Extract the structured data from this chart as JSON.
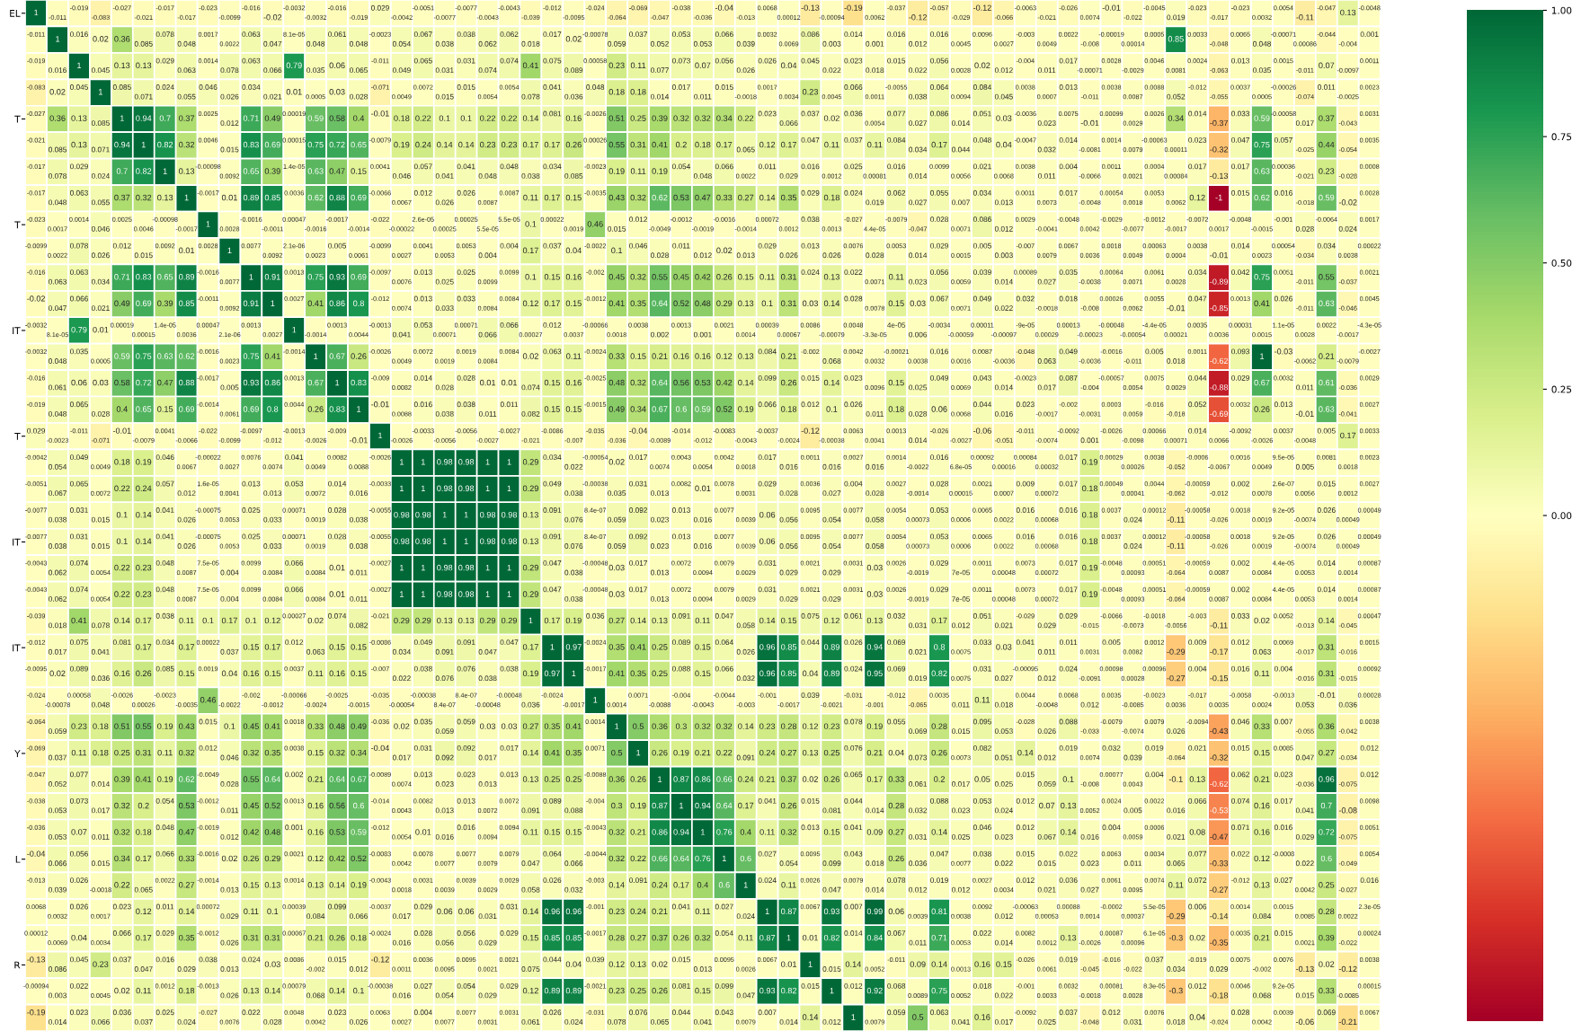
{
  "chart_data": {
    "type": "heatmap",
    "categories": [
      null,
      null,
      null,
      null,
      null,
      null,
      null,
      null,
      null,
      null,
      null,
      null,
      null,
      null,
      null,
      null,
      null,
      null,
      null,
      null,
      null,
      null,
      null,
      null,
      null,
      null,
      null,
      null,
      null,
      null,
      null,
      null,
      null,
      null,
      null,
      null,
      null,
      null,
      null,
      null,
      null,
      null,
      null,
      null,
      null,
      null,
      null,
      null,
      null,
      null,
      null,
      null,
      null,
      null,
      null,
      null,
      null,
      null,
      null,
      null,
      null,
      null,
      null
    ],
    "y_categories": [
      "EL",
      null,
      null,
      null,
      "T",
      null,
      null,
      null,
      "T",
      null,
      null,
      null,
      "IT",
      null,
      null,
      null,
      "T",
      null,
      null,
      null,
      "IT",
      null,
      null,
      null,
      "IT",
      null,
      null,
      null,
      "Y",
      null,
      null,
      null,
      "L",
      null,
      null,
      null,
      "R",
      null,
      null
    ],
    "clim": [
      -1,
      1
    ],
    "cticks": [
      {
        "value": 0,
        "label": "0.00"
      },
      {
        "value": 0.25,
        "label": "0.25"
      },
      {
        "value": 0.5,
        "label": "0.50"
      },
      {
        "value": 0.75,
        "label": "0.75"
      },
      {
        "value": 1,
        "label": "1.00"
      }
    ],
    "data_labels": true,
    "cells": [
      [
        1,
        -0.011,
        -0.019,
        -0.083,
        -0.027,
        -0.021,
        -0.017,
        -0.017,
        -0.023,
        -0.0099,
        -0.016,
        -0.02,
        -0.0032,
        -0.0032,
        -0.016,
        -0.019,
        0.029,
        -0.0042,
        -0.0051,
        -0.0077,
        -0.0077,
        -0.0043,
        -0.0043,
        -0.039,
        -0.012,
        -0.0095,
        -0.024,
        -0.064,
        -0.069,
        -0.047,
        -0.038,
        -0.036,
        -0.04,
        -0.013,
        0.0068,
        0.00012,
        -0.13,
        -0.00094,
        -0.19,
        0.0062,
        -0.037,
        -0.12,
        -0.057,
        -0.029,
        -0.12,
        -0.066,
        -0.0063,
        -0.021,
        -0.026,
        0.0074,
        -0.01,
        -0.022,
        -0.0045,
        0.019,
        -0.023,
        -0.017,
        -0.023,
        0.0032,
        0.0054,
        -0.11,
        -0.047,
        0.13,
        -0.0048
      ],
      [
        -0.011,
        1,
        0.016,
        0.02,
        0.36,
        0.085,
        0.078,
        0.048,
        0.0017,
        0.0022,
        0.063,
        0.047,
        8.1e-05,
        0.048,
        0.061,
        0.048,
        -0.0023,
        0.054,
        0.067,
        0.038,
        0.038,
        0.062,
        0.062,
        0.018,
        0.017,
        0.02,
        -0.00078,
        0.059,
        0.037,
        0.052,
        0.053,
        0.053,
        0.066,
        0.039,
        0.0032,
        0.0069,
        0.086,
        0.003,
        0.014,
        0.001,
        0.016,
        0.012,
        0.016,
        0.0045,
        0.0096,
        0.0027,
        -0.003,
        0.0049,
        0.0022,
        -0.008,
        -0.00019,
        0.00014,
        0.0005,
        0.85,
        0.0033,
        -0.048,
        0.0065,
        0.048,
        -0.00071,
        0.00086,
        -0.044,
        -0.004,
        0.001
      ],
      [
        -0.019,
        0.016,
        1,
        0.045,
        0.13,
        0.13,
        0.029,
        0.063,
        0.0014,
        0.078,
        0.063,
        0.066,
        0.79,
        0.035,
        0.06,
        0.065,
        -0.011,
        0.049,
        0.065,
        0.031,
        0.031,
        0.074,
        0.074,
        0.41,
        0.075,
        0.089,
        0.00058,
        0.23,
        0.11,
        0.077,
        0.073,
        0.07,
        0.056,
        0.026,
        0.026,
        0.04,
        0.045,
        0.022,
        0.023,
        0.018,
        0.015,
        0.022,
        0.056,
        0.0028,
        0.02,
        0.012,
        -0.004,
        0.011,
        0.017,
        -0.00071,
        0.0028,
        -0.0029,
        0.0046,
        0.0081,
        0.0024,
        -0.063,
        0.013,
        0.035,
        0.0015,
        -0.011,
        0.07,
        -0.0097,
        0.0011
      ],
      [
        -0.083,
        0.02,
        0.045,
        1,
        0.085,
        0.071,
        0.024,
        0.055,
        0.046,
        0.026,
        0.034,
        0.021,
        0.01,
        0.0005,
        0.03,
        0.028,
        -0.071,
        0.0049,
        0.0072,
        0.015,
        0.015,
        0.0054,
        0.0054,
        0.078,
        0.041,
        0.036,
        0.048,
        0.18,
        0.18,
        0.014,
        0.017,
        0.011,
        0.015,
        -0.0018,
        0.0017,
        0.0034,
        0.23,
        0.0045,
        0.066,
        0.0011,
        -0.0055,
        0.038,
        0.064,
        0.0094,
        0.084,
        0.045,
        0.0038,
        0.0007,
        0.013,
        -0.011,
        0.0038,
        0.0087,
        0.0088,
        0.052,
        -0.012,
        -0.055,
        0.0037,
        0.0005,
        -0.00026,
        -0.074,
        0.011,
        -0.0025,
        0.0023
      ],
      [
        -0.027,
        0.36,
        0.13,
        0.085,
        1,
        0.94,
        0.7,
        0.37,
        0.0025,
        0.012,
        0.71,
        0.49,
        0.00019,
        0.59,
        0.58,
        0.4,
        -0.01,
        0.18,
        0.22,
        0.1,
        0.1,
        0.22,
        0.22,
        0.14,
        0.081,
        0.16,
        -0.0026,
        0.51,
        0.25,
        0.39,
        0.32,
        0.32,
        0.34,
        0.22,
        0.023,
        0.066,
        0.037,
        0.02,
        0.036,
        0.0054,
        0.077,
        0.027,
        0.086,
        0.014,
        0.051,
        0.03,
        -0.0036,
        0.023,
        0.0075,
        -0.01,
        0.00099,
        0.0029,
        0.0026,
        0.34,
        0.014,
        -0.37,
        0.033,
        0.59,
        -0.00058,
        0.017,
        0.37,
        -0.043,
        0.0031
      ],
      [
        -0.021,
        0.085,
        0.13,
        0.071,
        0.94,
        1,
        0.82,
        0.32,
        0.0046,
        0.015,
        0.83,
        0.69,
        0.00015,
        0.75,
        0.72,
        0.65,
        -0.0079,
        0.19,
        0.24,
        0.14,
        0.14,
        0.23,
        0.23,
        0.17,
        0.17,
        0.26,
        0.00026,
        0.55,
        0.31,
        0.41,
        0.2,
        0.18,
        0.17,
        0.065,
        0.12,
        0.17,
        0.047,
        0.11,
        0.037,
        0.11,
        0.084,
        0.034,
        0.17,
        0.044,
        0.048,
        0.04,
        -0.0047,
        0.032,
        0.014,
        -0.0081,
        0.0014,
        0.0079,
        -0.00063,
        0.00011,
        0.023,
        -0.32,
        0.047,
        0.75,
        0.057,
        -0.025,
        0.44,
        -0.054,
        0.0035
      ],
      [
        -0.017,
        0.078,
        0.029,
        0.024,
        0.7,
        0.82,
        1,
        0.13,
        -0.00098,
        0.0092,
        0.65,
        0.39,
        1.4e-05,
        0.63,
        0.47,
        0.15,
        0.0041,
        0.046,
        0.057,
        0.041,
        0.041,
        0.048,
        0.048,
        0.038,
        0.034,
        0.085,
        -0.0023,
        0.19,
        0.11,
        0.19,
        0.054,
        0.048,
        0.066,
        0.0022,
        0.011,
        0.029,
        0.016,
        0.0012,
        0.025,
        0.00081,
        0.016,
        0.014,
        0.0099,
        0.0056,
        0.021,
        0.0068,
        0.0038,
        0.011,
        0.004,
        -0.0066,
        0.0011,
        0.0021,
        0.0004,
        0.00084,
        0.017,
        -0.13,
        0.017,
        0.63,
        0.00036,
        -0.021,
        0.23,
        -0.028,
        0.0008
      ],
      [
        -0.017,
        0.048,
        0.063,
        0.055,
        0.37,
        0.32,
        0.13,
        1,
        -0.0017,
        0.01,
        0.89,
        0.85,
        0.0036,
        0.62,
        0.88,
        0.69,
        -0.0066,
        0.0067,
        0.012,
        0.026,
        0.026,
        0.0087,
        0.0087,
        0.11,
        0.17,
        0.15,
        -0.0035,
        0.43,
        0.32,
        0.62,
        0.53,
        0.47,
        0.33,
        0.27,
        0.14,
        0.35,
        0.029,
        0.18,
        0.024,
        0.019,
        0.062,
        0.027,
        0.055,
        0.007,
        0.034,
        0.013,
        0.0011,
        0.0073,
        0.017,
        -0.0048,
        0.00054,
        0.0018,
        0.0053,
        0.0062,
        0.12,
        -1,
        0.015,
        0.62,
        0.016,
        -0.018,
        0.59,
        -0.02,
        0.0028
      ],
      [
        -0.023,
        0.0017,
        0.0014,
        0.046,
        0.0025,
        0.0046,
        -0.00098,
        -0.0017,
        1,
        0.0028,
        -0.0016,
        -0.0011,
        0.00047,
        -0.0016,
        -0.0017,
        -0.0014,
        -0.022,
        -0.00022,
        2.6e-05,
        0.00025,
        0.00025,
        5.5e-05,
        5.5e-05,
        0.1,
        0.00022,
        0.0019,
        0.46,
        0.015,
        0.012,
        -0.0049,
        -0.0012,
        -0.0019,
        -0.0016,
        -0.0014,
        0.00072,
        0.0012,
        0.038,
        0.0013,
        -0.027,
        4.4e-05,
        -0.0079,
        -0.047,
        0.028,
        0.0071,
        0.086,
        0.012,
        0.0029,
        -0.0041,
        -0.0048,
        0.0042,
        -0.0029,
        -0.0077,
        -0.0012,
        -0.0017,
        -0.0072,
        0.0017,
        -0.0048,
        -0.0015,
        -0.001,
        0.028,
        -0.0064,
        0.024,
        0.0017
      ],
      [
        -0.0099,
        0.0022,
        0.078,
        0.026,
        0.012,
        0.015,
        0.0092,
        0.01,
        0.0028,
        1,
        0.0077,
        0.0092,
        2.1e-06,
        0.0023,
        0.005,
        0.0061,
        -0.0099,
        0.0027,
        0.0041,
        0.0053,
        0.0053,
        0.004,
        0.004,
        0.17,
        0.037,
        0.04,
        -0.0022,
        0.1,
        0.046,
        0.028,
        0.011,
        0.012,
        0.02,
        0.013,
        0.029,
        0.026,
        0.013,
        0.026,
        0.0076,
        0.028,
        0.0053,
        0.014,
        0.029,
        0.0015,
        0.005,
        0.003,
        -0.007,
        0.0079,
        0.0067,
        0.0036,
        0.0018,
        0.0049,
        0.00063,
        0.0004,
        0.0038,
        -0.01,
        0.014,
        0.0023,
        0.00054,
        -0.034,
        0.034,
        0.0038,
        0.00022
      ],
      [
        -0.016,
        0.063,
        0.063,
        0.034,
        0.71,
        0.83,
        0.65,
        0.89,
        -0.0016,
        0.0077,
        1,
        0.91,
        0.0013,
        0.75,
        0.93,
        0.69,
        -0.0097,
        0.0076,
        0.013,
        0.025,
        0.025,
        0.0099,
        0.0099,
        0.1,
        0.15,
        0.16,
        -0.002,
        0.45,
        0.32,
        0.55,
        0.45,
        0.42,
        0.26,
        0.15,
        0.11,
        0.31,
        0.024,
        0.13,
        0.022,
        0.0071,
        0.11,
        0.023,
        0.056,
        0.0059,
        0.039,
        0.014,
        0.00089,
        0.027,
        0.035,
        -0.0038,
        0.00064,
        0.0071,
        0.0061,
        0.0028,
        0.034,
        -0.89,
        0.042,
        0.75,
        0.0051,
        -0.011,
        0.55,
        -0.037,
        0.0021
      ],
      [
        -0.02,
        0.047,
        0.066,
        0.021,
        0.49,
        0.69,
        0.39,
        0.85,
        -0.0011,
        0.0092,
        0.91,
        1,
        0.0027,
        0.41,
        0.86,
        0.8,
        -0.012,
        0.0074,
        0.013,
        0.033,
        0.033,
        0.0084,
        0.0084,
        0.12,
        0.17,
        0.15,
        -0.0012,
        0.41,
        0.35,
        0.64,
        0.52,
        0.48,
        0.29,
        0.13,
        0.1,
        0.31,
        0.03,
        0.14,
        0.028,
        0.0078,
        0.15,
        0.03,
        0.067,
        0.0071,
        0.049,
        0.022,
        0.032,
        -0.0018,
        0.018,
        -0.008,
        0.00026,
        0.0062,
        0.0055,
        -0.01,
        0.047,
        -0.85,
        0.0013,
        0.41,
        0.026,
        -0.011,
        0.63,
        -0.046,
        0.0045
      ],
      [
        -0.0032,
        8.1e-05,
        0.79,
        0.01,
        0.00019,
        0.00015,
        1.4e-05,
        0.0036,
        0.00047,
        2.1e-06,
        0.0013,
        0.0027,
        1,
        -0.0014,
        0.0013,
        0.0044,
        -0.0013,
        0.041,
        0.053,
        0.00071,
        0.00071,
        0.066,
        0.066,
        0.00027,
        0.012,
        0.0037,
        -0.00066,
        0.0018,
        0.0038,
        0.002,
        0.0013,
        0.001,
        0.0021,
        0.0014,
        0.00039,
        0.00067,
        0.0086,
        -0.00079,
        0.0048,
        -3.3e-05,
        4e-05,
        0.006,
        -0.0034,
        -0.00059,
        0.00011,
        -0.00097,
        -9e-05,
        0.00029,
        0.00013,
        -0.00023,
        -0.00048,
        -0.00054,
        -4.4e-05,
        0.00021,
        0.0035,
        0.0036,
        0.00031,
        0.0015,
        1.1e-05,
        0.0028,
        0.0022,
        -0.0017,
        -4.3e-05
      ],
      [
        -0.0032,
        0.048,
        0.035,
        0.0005,
        0.59,
        0.75,
        0.63,
        0.62,
        -0.0016,
        0.0023,
        0.75,
        0.41,
        -0.0014,
        1,
        0.67,
        0.26,
        -0.0026,
        0.0049,
        0.0072,
        0.0019,
        0.0019,
        0.0084,
        0.0084,
        0.02,
        0.063,
        0.11,
        -0.0024,
        0.33,
        0.15,
        0.21,
        0.16,
        0.16,
        0.12,
        0.13,
        0.084,
        0.21,
        -0.002,
        0.068,
        0.0042,
        0.0032,
        -0.00021,
        0.0038,
        0.016,
        0.0016,
        0.0087,
        -0.0036,
        -0.048,
        0.063,
        0.049,
        -0.0036,
        -0.0016,
        -0.011,
        0.005,
        0.018,
        0.0011,
        -0.62,
        0.093,
        1,
        -0.03,
        -0.0062,
        0.21,
        -0.0079,
        -0.0027
      ],
      [
        -0.016,
        0.061,
        0.06,
        0.03,
        0.58,
        0.72,
        0.47,
        0.88,
        -0.0017,
        0.005,
        0.93,
        0.86,
        0.0013,
        0.67,
        1,
        0.83,
        -0.009,
        0.0082,
        0.014,
        0.028,
        0.028,
        0.01,
        0.01,
        0.074,
        0.15,
        0.16,
        -0.0025,
        0.48,
        0.32,
        0.64,
        0.56,
        0.53,
        0.42,
        0.14,
        0.099,
        0.26,
        0.015,
        0.14,
        0.023,
        0.0096,
        0.15,
        0.025,
        0.049,
        0.0069,
        0.043,
        0.014,
        -0.0023,
        0.017,
        0.087,
        -0.004,
        -0.00057,
        0.0054,
        0.0075,
        0.0029,
        0.044,
        -0.88,
        0.029,
        0.67,
        0.0032,
        0.011,
        0.61,
        -0.036,
        0.0029
      ],
      [
        -0.019,
        0.048,
        0.065,
        0.028,
        0.4,
        0.65,
        0.15,
        0.69,
        -0.0014,
        0.0061,
        0.69,
        0.8,
        0.0044,
        0.26,
        0.83,
        1,
        -0.01,
        0.0088,
        0.016,
        0.038,
        0.038,
        0.011,
        0.011,
        0.082,
        0.15,
        0.15,
        -0.0015,
        0.49,
        0.34,
        0.67,
        0.6,
        0.59,
        0.52,
        0.19,
        0.066,
        0.18,
        0.012,
        0.1,
        0.026,
        0.011,
        0.18,
        0.028,
        0.06,
        0.0068,
        0.044,
        0.016,
        0.023,
        -0.0017,
        -0.002,
        -0.0031,
        0.0003,
        0.0059,
        -0.016,
        -0.018,
        0.052,
        -0.69,
        0.0032,
        0.26,
        0.013,
        -0.01,
        0.63,
        -0.041,
        0.0027
      ],
      [
        0.029,
        -0.0023,
        -0.011,
        -0.071,
        -0.01,
        -0.0079,
        0.0041,
        -0.0066,
        -0.022,
        -0.0099,
        -0.0097,
        -0.012,
        -0.0013,
        -0.0026,
        -0.009,
        -0.01,
        1,
        -0.0026,
        -0.0033,
        -0.0056,
        -0.0056,
        -0.0027,
        -0.0027,
        -0.021,
        -0.0086,
        -0.007,
        -0.035,
        -0.036,
        -0.04,
        -0.0089,
        -0.014,
        -0.012,
        -0.0083,
        -0.0043,
        -0.0037,
        -0.0024,
        -0.12,
        -0.00038,
        0.0063,
        0.0041,
        0.0013,
        0.014,
        -0.026,
        -0.0027,
        -0.06,
        -0.051,
        -0.011,
        -0.0074,
        -0.0092,
        0.001,
        -0.0026,
        -0.0098,
        0.00066,
        0.00071,
        0.014,
        0.0066,
        -0.0092,
        -0.0026,
        0.0037,
        -0.0048,
        0.005,
        0.17,
        0.0033
      ],
      [
        -0.0042,
        0.054,
        0.049,
        0.0049,
        0.18,
        0.19,
        0.046,
        0.0067,
        -0.00022,
        0.0027,
        0.0076,
        0.0074,
        0.041,
        0.0049,
        0.0082,
        0.0088,
        -0.0026,
        1,
        1,
        0.98,
        0.98,
        1,
        1,
        0.29,
        0.034,
        0.022,
        -0.00054,
        0.02,
        0.017,
        0.0074,
        0.0043,
        0.0054,
        0.0042,
        0.0018,
        0.017,
        0.016,
        0.0011,
        0.016,
        0.0027,
        0.016,
        0.0014,
        -0.0022,
        0.016,
        6.8e-05,
        0.00092,
        0.00016,
        0.00084,
        0.00032,
        0.017,
        0.19,
        0.00029,
        0.00026,
        0.0038,
        -0.052,
        -0.0006,
        -0.0067,
        0.0016,
        0.0049,
        9.5e-05,
        0.005,
        0.0081,
        0.0018,
        0.0023
      ],
      [
        -0.0051,
        0.067,
        0.065,
        0.0072,
        0.22,
        0.24,
        0.057,
        0.012,
        1.6e-05,
        0.0041,
        0.013,
        0.013,
        0.053,
        0.0072,
        0.014,
        0.016,
        -0.0033,
        1,
        1,
        0.98,
        0.98,
        1,
        1,
        0.29,
        0.049,
        0.038,
        -0.00038,
        0.035,
        0.031,
        0.013,
        0.0082,
        0.01,
        0.0078,
        0.0031,
        0.029,
        0.028,
        0.0036,
        0.027,
        0.004,
        0.028,
        0.0027,
        -0.0014,
        0.028,
        0.00015,
        0.0021,
        0.0007,
        0.009,
        0.00072,
        0.017,
        0.18,
        0.00049,
        0.00041,
        0.0044,
        -0.062,
        -0.00059,
        -0.012,
        0.002,
        0.0078,
        2.6e-07,
        0.0056,
        0.015,
        0.0012,
        0.0027
      ],
      [
        -0.0077,
        0.038,
        0.031,
        0.015,
        0.1,
        0.14,
        0.041,
        0.026,
        -0.00075,
        0.0053,
        0.025,
        0.033,
        0.00071,
        0.0019,
        0.028,
        0.038,
        -0.0055,
        0.98,
        0.98,
        1,
        1,
        0.98,
        0.98,
        0.13,
        0.091,
        0.076,
        8.4e-07,
        0.059,
        0.092,
        0.023,
        0.013,
        0.016,
        0.0077,
        0.0039,
        0.06,
        0.056,
        0.0095,
        0.054,
        0.0077,
        0.058,
        0.0054,
        0.00073,
        0.053,
        0.0006,
        0.0065,
        0.0022,
        0.016,
        0.00068,
        0.016,
        0.18,
        0.0037,
        0.024,
        0.00012,
        -0.11,
        -0.00058,
        -0.026,
        0.0018,
        0.0019,
        9.2e-05,
        -0.0074,
        0.026,
        0.00049,
        0.00049
      ],
      [
        -0.0077,
        0.038,
        0.031,
        0.015,
        0.1,
        0.14,
        0.041,
        0.026,
        -0.00075,
        0.0053,
        0.025,
        0.033,
        0.00071,
        0.0019,
        0.028,
        0.038,
        -0.0055,
        0.98,
        0.98,
        1,
        1,
        0.98,
        0.98,
        0.13,
        0.091,
        0.076,
        8.4e-07,
        0.059,
        0.092,
        0.023,
        0.013,
        0.016,
        0.0077,
        0.0039,
        0.06,
        0.056,
        0.0095,
        0.054,
        0.0077,
        0.058,
        0.0054,
        0.00073,
        0.053,
        0.0006,
        0.0065,
        0.0022,
        0.016,
        0.00068,
        0.016,
        0.18,
        0.0037,
        0.024,
        0.00012,
        -0.11,
        -0.00058,
        -0.026,
        0.0018,
        0.0019,
        9.2e-05,
        -0.0074,
        0.026,
        0.00049,
        0.00049
      ],
      [
        -0.0043,
        0.062,
        0.074,
        0.0054,
        0.22,
        0.23,
        0.048,
        0.0087,
        7.5e-05,
        0.004,
        0.0099,
        0.0084,
        0.066,
        0.0084,
        0.01,
        0.011,
        -0.0027,
        1,
        1,
        0.98,
        0.98,
        1,
        1,
        0.29,
        0.047,
        0.038,
        -0.00048,
        0.03,
        0.017,
        0.013,
        0.0072,
        0.0094,
        0.0079,
        0.0029,
        0.031,
        0.029,
        0.0021,
        0.029,
        0.0031,
        0.03,
        0.0026,
        -0.0019,
        0.029,
        7e-05,
        0.0011,
        0.00048,
        0.0073,
        0.00072,
        0.017,
        0.19,
        -0.0048,
        0.00093,
        0.00051,
        -0.064,
        -0.00059,
        0.0087,
        0.002,
        0.0084,
        4.4e-05,
        0.0053,
        0.014,
        0.0014,
        0.00087
      ],
      [
        -0.0043,
        0.062,
        0.074,
        0.0054,
        0.22,
        0.23,
        0.048,
        0.0087,
        7.5e-05,
        0.004,
        0.0099,
        0.0084,
        0.066,
        0.0084,
        0.01,
        0.011,
        -0.0027,
        1,
        1,
        0.98,
        0.98,
        1,
        1,
        0.29,
        0.047,
        0.038,
        -0.00048,
        0.03,
        0.017,
        0.013,
        0.0072,
        0.0094,
        0.0079,
        0.0029,
        0.031,
        0.029,
        0.0021,
        0.029,
        0.0031,
        0.03,
        0.0026,
        -0.0019,
        0.029,
        7e-05,
        0.0011,
        0.00048,
        0.0073,
        0.00072,
        0.017,
        0.19,
        -0.0048,
        0.00093,
        0.00051,
        -0.064,
        -0.00059,
        0.0087,
        0.002,
        0.0084,
        4.4e-05,
        0.0053,
        0.014,
        0.0014,
        0.00087
      ],
      [
        -0.039,
        0.018,
        0.41,
        0.078,
        0.14,
        0.17,
        0.038,
        0.11,
        0.1,
        0.17,
        0.1,
        0.12,
        0.00027,
        0.02,
        0.074,
        0.082,
        -0.021,
        0.29,
        0.29,
        0.13,
        0.13,
        0.29,
        0.29,
        1,
        0.17,
        0.19,
        0.036,
        0.27,
        0.14,
        0.13,
        0.091,
        0.11,
        0.047,
        0.058,
        0.14,
        0.15,
        0.075,
        0.12,
        0.061,
        0.13,
        0.032,
        0.031,
        0.17,
        0.012,
        0.051,
        0.021,
        -0.029,
        0.029,
        0.029,
        -0.015,
        -0.0066,
        -0.0073,
        -0.0018,
        -0.0056,
        -0.003,
        -0.11,
        0.033,
        0.02,
        0.0052,
        -0.013,
        0.14,
        -0.045,
        0.00047
      ],
      [
        -0.012,
        0.017,
        0.075,
        0.041,
        0.081,
        0.17,
        0.034,
        0.17,
        0.00022,
        0.037,
        0.15,
        0.17,
        0.012,
        0.063,
        0.15,
        0.15,
        -0.0086,
        0.034,
        0.049,
        0.091,
        0.091,
        0.047,
        0.047,
        0.17,
        1,
        0.97,
        -0.0024,
        0.35,
        0.41,
        0.25,
        0.089,
        0.15,
        0.064,
        0.026,
        0.96,
        0.85,
        0.044,
        0.89,
        0.026,
        0.94,
        0.069,
        0.021,
        0.8,
        0.0075,
        0.033,
        0.03,
        0.041,
        0.011,
        0.011,
        0.0031,
        0.005,
        0.0082,
        0.0012,
        -0.29,
        0.009,
        -0.17,
        0.012,
        0.063,
        0.0069,
        -0.017,
        0.31,
        -0.016,
        0.0015
      ],
      [
        -0.0095,
        0.02,
        0.089,
        0.036,
        0.16,
        0.26,
        0.085,
        0.15,
        0.0019,
        0.04,
        0.16,
        0.15,
        0.0037,
        0.11,
        0.16,
        0.15,
        -0.007,
        0.022,
        0.038,
        0.076,
        0.076,
        0.038,
        0.038,
        0.19,
        0.97,
        1,
        -0.0017,
        0.41,
        0.35,
        0.25,
        0.088,
        0.15,
        0.066,
        0.032,
        0.96,
        0.85,
        0.04,
        0.89,
        0.024,
        0.95,
        0.069,
        0.019,
        0.82,
        0.0075,
        0.031,
        0.027,
        -0.00095,
        0.012,
        0.024,
        -0.0091,
        0.00098,
        0.00028,
        0.00096,
        -0.27,
        0.004,
        -0.15,
        0.016,
        0.11,
        0.004,
        -0.016,
        0.31,
        -0.015,
        0.00092
      ],
      [
        -0.024,
        -0.00078,
        0.00058,
        0.048,
        -0.0026,
        0.00026,
        -0.0023,
        -0.0035,
        0.46,
        -0.0022,
        -0.002,
        -0.0012,
        -0.00066,
        -0.0024,
        -0.0025,
        -0.0015,
        -0.035,
        -0.00054,
        -0.00038,
        8.4e-07,
        8.4e-07,
        -0.00048,
        -0.00048,
        0.036,
        -0.0024,
        -0.0017,
        1,
        0.0014,
        0.0071,
        -0.0088,
        -0.004,
        -0.0043,
        -0.0044,
        -0.003,
        -0.001,
        -0.0017,
        0.039,
        -0.0021,
        -0.031,
        -0.001,
        -0.012,
        -0.065,
        0.0035,
        0.011,
        0.11,
        0.018,
        0.0044,
        -0.0048,
        0.0068,
        0.012,
        0.0035,
        -0.0085,
        -0.0023,
        0.0036,
        -0.017,
        0.0035,
        -0.0058,
        0.0024,
        -0.0013,
        0.053,
        -0.01,
        0.036,
        0.00028
      ],
      [
        -0.064,
        0.059,
        0.23,
        0.18,
        0.51,
        0.55,
        0.19,
        0.43,
        0.015,
        0.1,
        0.45,
        0.41,
        0.0018,
        0.33,
        0.48,
        0.49,
        -0.036,
        0.02,
        0.035,
        0.059,
        0.059,
        0.03,
        0.03,
        0.27,
        0.35,
        0.41,
        0.0014,
        1,
        0.5,
        0.36,
        0.3,
        0.32,
        0.32,
        0.14,
        0.23,
        0.28,
        0.12,
        0.23,
        0.078,
        0.19,
        0.055,
        0.069,
        0.28,
        0.015,
        0.095,
        0.053,
        -0.028,
        0.026,
        0.088,
        -0.033,
        -0.0079,
        -0.0074,
        0.0079,
        0.026,
        -0.0094,
        -0.43,
        0.046,
        0.33,
        0.007,
        -0.055,
        0.36,
        -0.042,
        0.0038
      ],
      [
        -0.069,
        0.037,
        0.11,
        0.18,
        0.25,
        0.31,
        0.11,
        0.32,
        0.012,
        0.046,
        0.32,
        0.35,
        0.0038,
        0.15,
        0.32,
        0.34,
        -0.04,
        0.017,
        0.031,
        0.092,
        0.092,
        0.017,
        0.017,
        0.14,
        0.41,
        0.35,
        0.0071,
        0.5,
        1,
        0.26,
        0.19,
        0.21,
        0.22,
        0.091,
        0.24,
        0.27,
        0.13,
        0.25,
        0.076,
        0.21,
        0.04,
        0.073,
        0.26,
        0.0073,
        0.082,
        0.051,
        0.14,
        0.012,
        0.019,
        0.0074,
        0.032,
        0.039,
        0.019,
        -0.064,
        0.021,
        -0.32,
        0.015,
        0.15,
        0.0085,
        0.047,
        0.27,
        -0.034,
        0.012
      ],
      [
        -0.047,
        0.052,
        0.077,
        0.014,
        0.39,
        0.41,
        0.19,
        0.62,
        -0.0049,
        0.028,
        0.55,
        0.64,
        0.002,
        0.21,
        0.64,
        0.67,
        -0.0089,
        0.0074,
        0.013,
        0.023,
        0.023,
        0.013,
        0.013,
        0.13,
        0.25,
        0.25,
        -0.0088,
        0.36,
        0.26,
        1,
        0.87,
        0.86,
        0.66,
        0.24,
        0.21,
        0.37,
        0.02,
        0.26,
        0.065,
        0.17,
        0.33,
        0.061,
        0.2,
        0.017,
        0.05,
        0.025,
        0.015,
        0.059,
        0.1,
        -0.008,
        0.00077,
        0.0043,
        0.004,
        -0.1,
        0.13,
        -0.62,
        0.062,
        0.21,
        0.023,
        -0.036,
        0.96,
        -0.075,
        0.012
      ],
      [
        -0.038,
        0.053,
        0.073,
        0.017,
        0.32,
        0.2,
        0.054,
        0.53,
        -0.0012,
        0.011,
        0.45,
        0.52,
        0.0013,
        0.16,
        0.56,
        0.6,
        -0.014,
        0.0043,
        0.0082,
        0.013,
        0.013,
        0.0072,
        0.0072,
        0.091,
        0.089,
        0.088,
        -0.004,
        0.3,
        0.19,
        0.87,
        1,
        0.94,
        0.64,
        0.17,
        0.041,
        0.26,
        0.015,
        0.081,
        0.044,
        0.014,
        0.28,
        0.032,
        0.088,
        0.023,
        0.053,
        0.024,
        0.012,
        0.07,
        0.13,
        0.0052,
        0.0024,
        0.005,
        0.0022,
        0.016,
        0.066,
        -0.53,
        0.074,
        0.16,
        0.017,
        0.041,
        0.7,
        -0.08,
        0.0098
      ],
      [
        -0.036,
        0.053,
        0.07,
        0.011,
        0.32,
        0.18,
        0.048,
        0.47,
        -0.0019,
        0.012,
        0.42,
        0.48,
        0.001,
        0.16,
        0.53,
        0.59,
        -0.012,
        0.0054,
        0.01,
        0.016,
        0.016,
        0.0094,
        0.0094,
        0.11,
        0.15,
        0.15,
        -0.0043,
        0.32,
        0.21,
        0.86,
        0.94,
        1,
        0.76,
        0.4,
        0.11,
        0.32,
        0.013,
        0.15,
        0.041,
        0.09,
        0.27,
        0.031,
        0.14,
        0.025,
        0.046,
        0.023,
        0.012,
        0.067,
        0.14,
        0.016,
        0.004,
        0.0059,
        0.0006,
        0.021,
        0.08,
        -0.47,
        0.071,
        0.16,
        0.016,
        0.029,
        0.72,
        -0.075,
        0.0051
      ],
      [
        -0.04,
        0.066,
        0.056,
        0.015,
        0.34,
        0.17,
        0.066,
        0.33,
        -0.0016,
        0.02,
        0.26,
        0.29,
        0.0021,
        0.12,
        0.42,
        0.52,
        -0.0083,
        0.0042,
        0.0078,
        0.0077,
        0.0077,
        0.0079,
        0.0079,
        0.047,
        0.064,
        0.066,
        -0.0044,
        0.32,
        0.22,
        0.66,
        0.64,
        0.76,
        1,
        0.6,
        0.027,
        0.054,
        0.0095,
        0.099,
        0.043,
        0.018,
        0.26,
        0.036,
        0.047,
        0.0077,
        0.038,
        0.022,
        0.015,
        0.015,
        0.022,
        0.023,
        0.0063,
        0.011,
        0.0034,
        0.065,
        0.077,
        -0.33,
        0.022,
        0.12,
        -0.0008,
        0.022,
        0.6,
        -0.049,
        0.0054
      ],
      [
        -0.013,
        0.039,
        0.026,
        -0.0018,
        0.22,
        0.065,
        0.0022,
        0.27,
        -0.0014,
        0.013,
        0.15,
        0.13,
        0.0014,
        0.13,
        0.14,
        0.19,
        -0.0043,
        0.0018,
        0.0031,
        0.0039,
        0.0039,
        0.0029,
        0.0029,
        0.058,
        0.026,
        0.032,
        -0.003,
        0.14,
        0.091,
        0.24,
        0.17,
        0.4,
        0.6,
        1,
        0.024,
        0.11,
        0.0026,
        0.047,
        0.0079,
        0.014,
        0.078,
        0.012,
        0.019,
        0.012,
        0.0027,
        0.0034,
        0.012,
        0.021,
        0.036,
        0.027,
        0.0061,
        0.0095,
        0.0074,
        0.11,
        0.072,
        -0.27,
        -0.012,
        0.13,
        0.027,
        0.0042,
        0.25,
        -0.027,
        0.016
      ],
      [
        0.0068,
        0.0032,
        0.026,
        0.0017,
        0.023,
        0.12,
        0.011,
        0.14,
        0.00072,
        0.029,
        0.11,
        0.1,
        0.00039,
        0.084,
        0.099,
        0.066,
        -0.0037,
        0.017,
        0.029,
        0.06,
        0.06,
        0.031,
        0.031,
        0.14,
        0.96,
        0.96,
        -0.001,
        0.23,
        0.24,
        0.21,
        0.041,
        0.11,
        0.027,
        0.024,
        1,
        0.87,
        0.0067,
        0.93,
        0.007,
        0.99,
        0.06,
        0.0039,
        0.81,
        0.0038,
        0.0092,
        0.012,
        -0.00063,
        0.00053,
        0.00088,
        0.0014,
        -0.0002,
        0.00037,
        5.5e-05,
        -0.29,
        0.006,
        -0.14,
        0.0014,
        0.084,
        0.0015,
        0.0085,
        0.28,
        0.0022,
        2.3e-05
      ],
      [
        0.00012,
        0.0069,
        0.04,
        0.0034,
        0.066,
        0.17,
        0.029,
        0.35,
        -0.0012,
        0.026,
        0.31,
        0.31,
        0.00067,
        0.21,
        0.26,
        0.18,
        -0.0024,
        0.016,
        0.028,
        0.056,
        0.056,
        0.029,
        0.029,
        0.15,
        0.85,
        0.85,
        -0.0017,
        0.28,
        0.27,
        0.37,
        0.26,
        0.32,
        0.054,
        0.11,
        0.87,
        1,
        0.01,
        0.82,
        0.014,
        0.84,
        0.067,
        0.011,
        0.71,
        0.0053,
        0.022,
        0.014,
        0.0082,
        0.0012,
        0.13,
        -0.0026,
        0.00087,
        0.00096,
        6.1e-05,
        -0.3,
        0.02,
        -0.35,
        0.0035,
        0.21,
        0.015,
        0.0021,
        0.39,
        -0.022,
        0.00024
      ],
      [
        -0.13,
        0.086,
        0.045,
        0.23,
        0.037,
        0.047,
        0.016,
        0.029,
        0.038,
        0.013,
        0.024,
        0.03,
        0.0086,
        -0.002,
        0.015,
        0.012,
        -0.12,
        0.0011,
        0.0036,
        0.0095,
        0.0095,
        0.0021,
        0.0021,
        0.075,
        0.044,
        0.04,
        0.039,
        0.12,
        0.13,
        0.02,
        0.015,
        0.013,
        0.0095,
        0.0026,
        0.0067,
        0.01,
        1,
        0.015,
        0.14,
        0.0052,
        -0.011,
        0.09,
        0.14,
        0.0013,
        0.16,
        0.15,
        -0.026,
        0.0061,
        0.019,
        -0.045,
        -0.016,
        -0.022,
        0.037,
        0.034,
        -0.019,
        0.029,
        0.0075,
        -0.002,
        0.0076,
        -0.13,
        0.02,
        -0.12,
        0.0038
      ],
      [
        -0.00094,
        0.003,
        0.022,
        0.0045,
        0.02,
        0.11,
        0.0012,
        0.18,
        -0.0013,
        0.026,
        0.13,
        0.14,
        0.00079,
        0.068,
        0.14,
        0.1,
        -0.00038,
        0.016,
        0.027,
        0.054,
        0.054,
        0.029,
        0.029,
        0.12,
        0.89,
        0.89,
        -0.0021,
        0.23,
        0.25,
        0.26,
        0.081,
        0.15,
        0.099,
        0.047,
        0.93,
        0.82,
        0.015,
        1,
        0.012,
        0.92,
        0.068,
        0.0089,
        0.75,
        0.0052,
        0.018,
        0.022,
        -0.001,
        0.0033,
        0.0032,
        -0.0018,
        0.00081,
        0.0028,
        8.3e-05,
        -0.3,
        0.012,
        -0.18,
        0.0046,
        0.068,
        9.2e-05,
        0.015,
        0.33,
        -0.0085,
        0.00015
      ],
      [
        -0.19,
        0.014,
        0.023,
        0.066,
        0.036,
        0.037,
        0.025,
        0.024,
        -0.027,
        0.0076,
        0.022,
        0.028,
        0.0048,
        0.0042,
        0.023,
        0.026,
        0.0063,
        0.0027,
        0.004,
        0.0077,
        0.0077,
        0.0031,
        0.0031,
        0.061,
        0.026,
        0.024,
        -0.031,
        0.078,
        0.076,
        0.065,
        0.044,
        0.041,
        0.043,
        0.0079,
        0.007,
        0.014,
        0.14,
        0.012,
        1,
        0.0079,
        0.059,
        0.5,
        0.063,
        0.041,
        0.16,
        0.017,
        -0.0092,
        0.025,
        0.037,
        -0.048,
        0.012,
        0.031,
        0.0076,
        0.018,
        0.04,
        -0.024,
        0.028,
        0.0042,
        0.0039,
        -0.06,
        0.069,
        -0.21,
        0.0067
      ]
    ]
  }
}
